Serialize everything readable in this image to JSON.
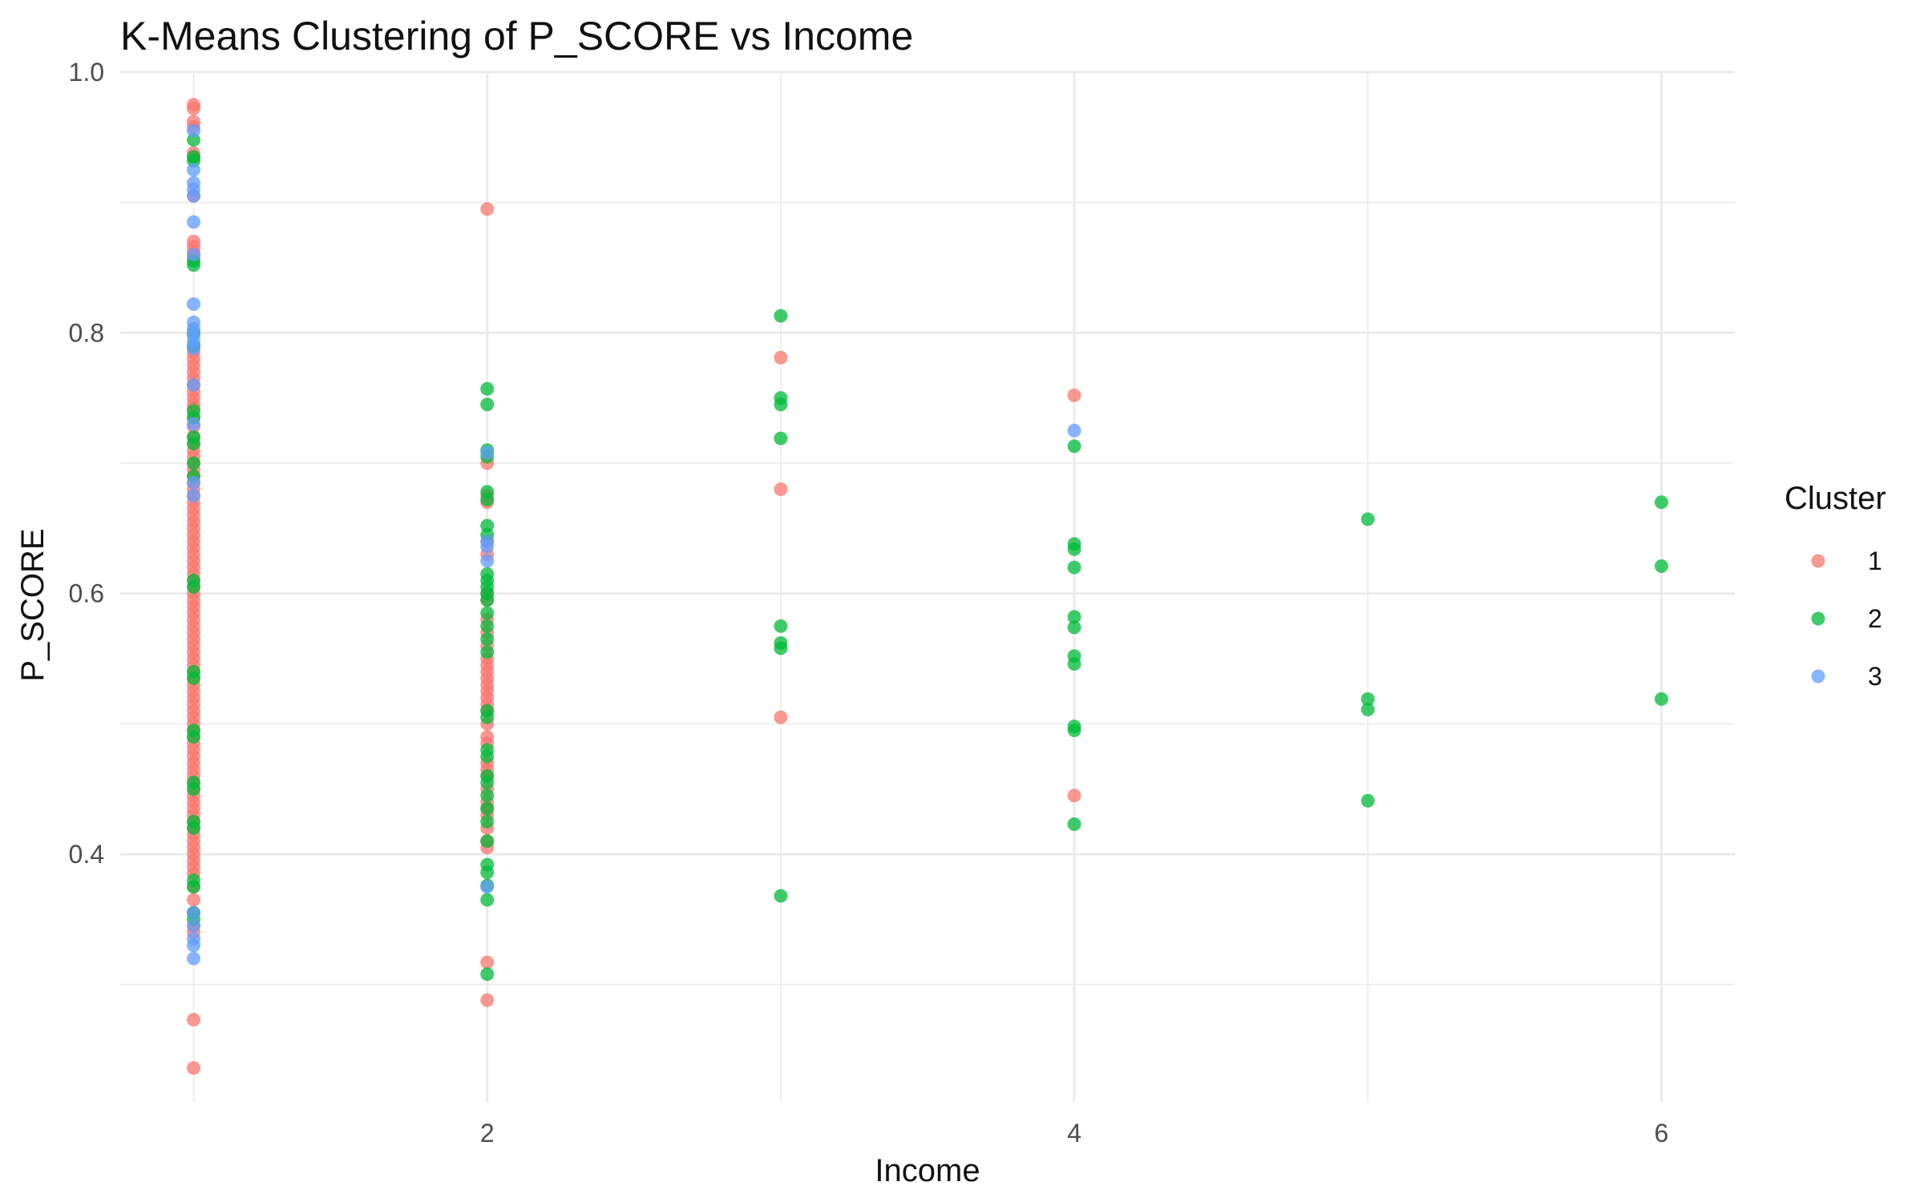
{
  "chart_data": {
    "type": "scatter",
    "title": "K-Means Clustering of P_SCORE vs Income",
    "xlabel": "Income",
    "ylabel": "P_SCORE",
    "xlim": [
      0.75,
      6.25
    ],
    "ylim": [
      0.21,
      1.0
    ],
    "x_ticks": [
      2,
      4,
      6
    ],
    "x_tick_labels": [
      "2",
      "4",
      "6"
    ],
    "y_ticks": [
      0.4,
      0.6,
      0.8,
      1.0
    ],
    "y_tick_labels": [
      "0.4",
      "0.6",
      "0.8",
      "1.0"
    ],
    "grid": true,
    "legend": {
      "title": "Cluster",
      "position": "right"
    },
    "colors": {
      "1": "#F8766D",
      "2": "#00BA38",
      "3": "#619CFF"
    },
    "series": [
      {
        "name": "1",
        "points": [
          [
            1,
            0.975
          ],
          [
            1,
            0.972
          ],
          [
            1,
            0.962
          ],
          [
            1,
            0.958
          ],
          [
            1,
            0.938
          ],
          [
            1,
            0.935
          ],
          [
            1,
            0.905
          ],
          [
            1,
            0.87
          ],
          [
            1,
            0.866
          ],
          [
            1,
            0.862
          ],
          [
            1,
            0.858
          ],
          [
            1,
            0.785
          ],
          [
            1,
            0.78
          ],
          [
            1,
            0.775
          ],
          [
            1,
            0.77
          ],
          [
            1,
            0.765
          ],
          [
            1,
            0.76
          ],
          [
            1,
            0.755
          ],
          [
            1,
            0.75
          ],
          [
            1,
            0.745
          ],
          [
            1,
            0.742
          ],
          [
            1,
            0.735
          ],
          [
            1,
            0.728
          ],
          [
            1,
            0.72
          ],
          [
            1,
            0.715
          ],
          [
            1,
            0.71
          ],
          [
            1,
            0.705
          ],
          [
            1,
            0.7
          ],
          [
            1,
            0.695
          ],
          [
            1,
            0.69
          ],
          [
            1,
            0.685
          ],
          [
            1,
            0.68
          ],
          [
            1,
            0.675
          ],
          [
            1,
            0.67
          ],
          [
            1,
            0.665
          ],
          [
            1,
            0.66
          ],
          [
            1,
            0.655
          ],
          [
            1,
            0.65
          ],
          [
            1,
            0.645
          ],
          [
            1,
            0.64
          ],
          [
            1,
            0.635
          ],
          [
            1,
            0.63
          ],
          [
            1,
            0.625
          ],
          [
            1,
            0.62
          ],
          [
            1,
            0.615
          ],
          [
            1,
            0.61
          ],
          [
            1,
            0.605
          ],
          [
            1,
            0.6
          ],
          [
            1,
            0.595
          ],
          [
            1,
            0.59
          ],
          [
            1,
            0.585
          ],
          [
            1,
            0.58
          ],
          [
            1,
            0.575
          ],
          [
            1,
            0.57
          ],
          [
            1,
            0.565
          ],
          [
            1,
            0.56
          ],
          [
            1,
            0.555
          ],
          [
            1,
            0.55
          ],
          [
            1,
            0.545
          ],
          [
            1,
            0.54
          ],
          [
            1,
            0.535
          ],
          [
            1,
            0.53
          ],
          [
            1,
            0.525
          ],
          [
            1,
            0.52
          ],
          [
            1,
            0.515
          ],
          [
            1,
            0.51
          ],
          [
            1,
            0.505
          ],
          [
            1,
            0.5
          ],
          [
            1,
            0.495
          ],
          [
            1,
            0.49
          ],
          [
            1,
            0.485
          ],
          [
            1,
            0.48
          ],
          [
            1,
            0.475
          ],
          [
            1,
            0.47
          ],
          [
            1,
            0.465
          ],
          [
            1,
            0.46
          ],
          [
            1,
            0.455
          ],
          [
            1,
            0.45
          ],
          [
            1,
            0.445
          ],
          [
            1,
            0.44
          ],
          [
            1,
            0.435
          ],
          [
            1,
            0.43
          ],
          [
            1,
            0.425
          ],
          [
            1,
            0.42
          ],
          [
            1,
            0.415
          ],
          [
            1,
            0.41
          ],
          [
            1,
            0.405
          ],
          [
            1,
            0.4
          ],
          [
            1,
            0.395
          ],
          [
            1,
            0.39
          ],
          [
            1,
            0.385
          ],
          [
            1,
            0.375
          ],
          [
            1,
            0.365
          ],
          [
            1,
            0.355
          ],
          [
            1,
            0.345
          ],
          [
            1,
            0.34
          ],
          [
            1,
            0.273
          ],
          [
            1,
            0.236
          ],
          [
            2,
            0.895
          ],
          [
            2,
            0.7
          ],
          [
            2,
            0.675
          ],
          [
            2,
            0.67
          ],
          [
            2,
            0.64
          ],
          [
            2,
            0.63
          ],
          [
            2,
            0.6
          ],
          [
            2,
            0.595
          ],
          [
            2,
            0.58
          ],
          [
            2,
            0.57
          ],
          [
            2,
            0.56
          ],
          [
            2,
            0.55
          ],
          [
            2,
            0.545
          ],
          [
            2,
            0.54
          ],
          [
            2,
            0.535
          ],
          [
            2,
            0.53
          ],
          [
            2,
            0.525
          ],
          [
            2,
            0.52
          ],
          [
            2,
            0.515
          ],
          [
            2,
            0.51
          ],
          [
            2,
            0.5
          ],
          [
            2,
            0.49
          ],
          [
            2,
            0.485
          ],
          [
            2,
            0.47
          ],
          [
            2,
            0.465
          ],
          [
            2,
            0.46
          ],
          [
            2,
            0.45
          ],
          [
            2,
            0.44
          ],
          [
            2,
            0.435
          ],
          [
            2,
            0.43
          ],
          [
            2,
            0.42
          ],
          [
            2,
            0.41
          ],
          [
            2,
            0.405
          ],
          [
            2,
            0.317
          ],
          [
            2,
            0.288
          ],
          [
            3,
            0.781
          ],
          [
            3,
            0.68
          ],
          [
            3,
            0.505
          ],
          [
            4,
            0.752
          ],
          [
            4,
            0.445
          ]
        ]
      },
      {
        "name": "2",
        "points": [
          [
            1,
            0.948
          ],
          [
            1,
            0.935
          ],
          [
            1,
            0.932
          ],
          [
            1,
            0.855
          ],
          [
            1,
            0.852
          ],
          [
            1,
            0.8
          ],
          [
            1,
            0.79
          ],
          [
            1,
            0.74
          ],
          [
            1,
            0.735
          ],
          [
            1,
            0.72
          ],
          [
            1,
            0.715
          ],
          [
            1,
            0.7
          ],
          [
            1,
            0.69
          ],
          [
            1,
            0.61
          ],
          [
            1,
            0.605
          ],
          [
            1,
            0.54
          ],
          [
            1,
            0.535
          ],
          [
            1,
            0.495
          ],
          [
            1,
            0.49
          ],
          [
            1,
            0.455
          ],
          [
            1,
            0.45
          ],
          [
            1,
            0.425
          ],
          [
            1,
            0.42
          ],
          [
            1,
            0.38
          ],
          [
            1,
            0.375
          ],
          [
            1,
            0.355
          ],
          [
            1,
            0.35
          ],
          [
            2,
            0.757
          ],
          [
            2,
            0.745
          ],
          [
            2,
            0.71
          ],
          [
            2,
            0.705
          ],
          [
            2,
            0.678
          ],
          [
            2,
            0.672
          ],
          [
            2,
            0.652
          ],
          [
            2,
            0.645
          ],
          [
            2,
            0.615
          ],
          [
            2,
            0.61
          ],
          [
            2,
            0.605
          ],
          [
            2,
            0.6
          ],
          [
            2,
            0.595
          ],
          [
            2,
            0.585
          ],
          [
            2,
            0.575
          ],
          [
            2,
            0.565
          ],
          [
            2,
            0.555
          ],
          [
            2,
            0.51
          ],
          [
            2,
            0.505
          ],
          [
            2,
            0.48
          ],
          [
            2,
            0.475
          ],
          [
            2,
            0.46
          ],
          [
            2,
            0.455
          ],
          [
            2,
            0.445
          ],
          [
            2,
            0.435
          ],
          [
            2,
            0.425
          ],
          [
            2,
            0.41
          ],
          [
            2,
            0.392
          ],
          [
            2,
            0.386
          ],
          [
            2,
            0.376
          ],
          [
            2,
            0.365
          ],
          [
            2,
            0.308
          ],
          [
            3,
            0.813
          ],
          [
            3,
            0.75
          ],
          [
            3,
            0.745
          ],
          [
            3,
            0.719
          ],
          [
            3,
            0.575
          ],
          [
            3,
            0.562
          ],
          [
            3,
            0.558
          ],
          [
            3,
            0.368
          ],
          [
            4,
            0.713
          ],
          [
            4,
            0.638
          ],
          [
            4,
            0.634
          ],
          [
            4,
            0.62
          ],
          [
            4,
            0.582
          ],
          [
            4,
            0.574
          ],
          [
            4,
            0.552
          ],
          [
            4,
            0.546
          ],
          [
            4,
            0.498
          ],
          [
            4,
            0.495
          ],
          [
            4,
            0.423
          ],
          [
            5,
            0.657
          ],
          [
            5,
            0.519
          ],
          [
            5,
            0.511
          ],
          [
            5,
            0.441
          ],
          [
            6,
            0.67
          ],
          [
            6,
            0.621
          ],
          [
            6,
            0.519
          ]
        ]
      },
      {
        "name": "3",
        "points": [
          [
            1,
            0.955
          ],
          [
            1,
            0.925
          ],
          [
            1,
            0.915
          ],
          [
            1,
            0.91
          ],
          [
            1,
            0.905
          ],
          [
            1,
            0.885
          ],
          [
            1,
            0.86
          ],
          [
            1,
            0.822
          ],
          [
            1,
            0.808
          ],
          [
            1,
            0.803
          ],
          [
            1,
            0.798
          ],
          [
            1,
            0.793
          ],
          [
            1,
            0.788
          ],
          [
            1,
            0.76
          ],
          [
            1,
            0.73
          ],
          [
            1,
            0.685
          ],
          [
            1,
            0.675
          ],
          [
            1,
            0.355
          ],
          [
            1,
            0.345
          ],
          [
            1,
            0.335
          ],
          [
            1,
            0.33
          ],
          [
            1,
            0.32
          ],
          [
            2,
            0.708
          ],
          [
            2,
            0.64
          ],
          [
            2,
            0.636
          ],
          [
            2,
            0.625
          ],
          [
            2,
            0.375
          ],
          [
            4,
            0.725
          ]
        ]
      }
    ]
  }
}
